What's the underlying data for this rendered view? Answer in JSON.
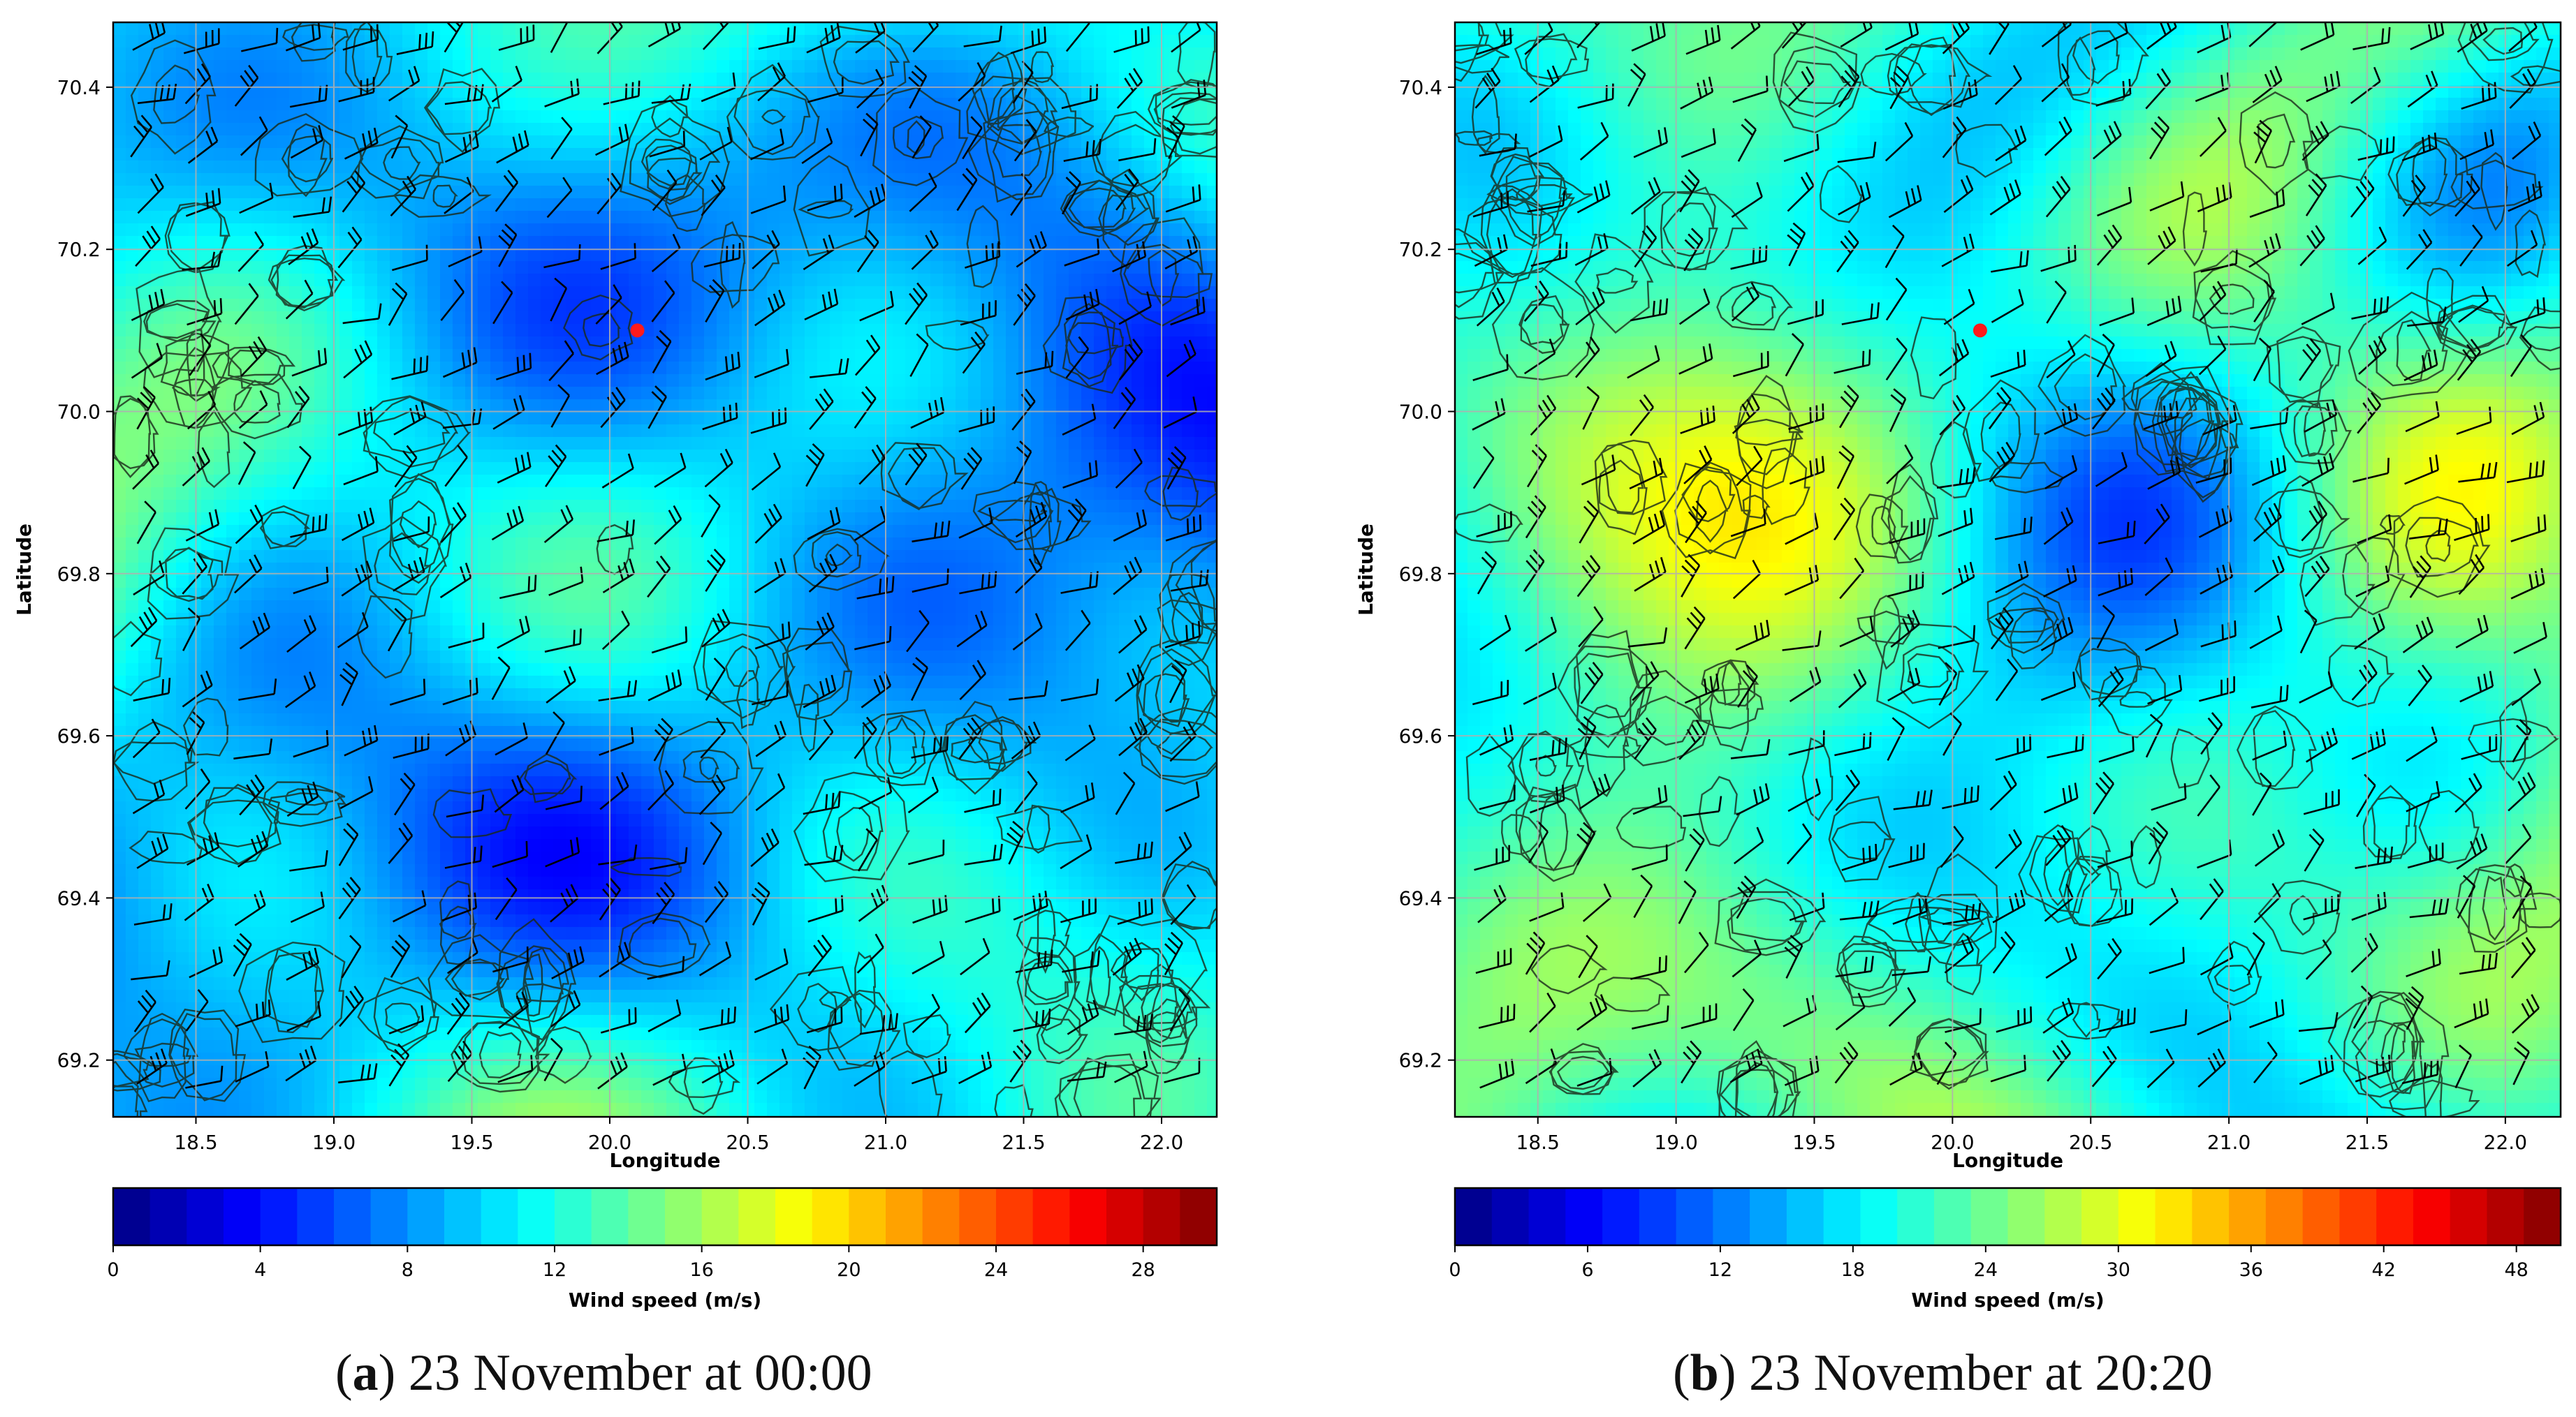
{
  "chart_data": [
    {
      "type": "heatmap",
      "panel_label": "a",
      "caption": "23 November at 00:00",
      "xlabel": "Longitude",
      "ylabel": "Latitude",
      "xlim": [
        18.2,
        22.2
      ],
      "ylim": [
        69.13,
        70.48
      ],
      "xticks": [
        18.5,
        19.0,
        19.5,
        20.0,
        20.5,
        21.0,
        21.5,
        22.0
      ],
      "xtick_labels": [
        "18.5",
        "19.0",
        "19.5",
        "20.0",
        "20.5",
        "21.0",
        "21.5",
        "22.0"
      ],
      "yticks": [
        69.2,
        69.4,
        69.6,
        69.8,
        70.0,
        70.2,
        70.4
      ],
      "ytick_labels": [
        "69.2",
        "69.4",
        "69.6",
        "69.8",
        "70.0",
        "70.2",
        "70.4"
      ],
      "grid": true,
      "colorbar": {
        "label": "Wind speed (m/s)",
        "min": 0,
        "max": 30,
        "ticks": [
          0,
          4,
          8,
          12,
          16,
          20,
          24,
          28
        ],
        "tick_labels": [
          "0",
          "4",
          "8",
          "12",
          "16",
          "20",
          "24",
          "28"
        ]
      },
      "overlays": [
        "wind barbs",
        "terrain elevation contours"
      ],
      "marker": {
        "lon": 20.1,
        "lat": 70.1,
        "color": "#ff1a1a"
      },
      "seed": 11,
      "field_mean": 0.33
    },
    {
      "type": "heatmap",
      "panel_label": "b",
      "caption": "23 November at 20:20",
      "xlabel": "Longitude",
      "ylabel": "Latitude",
      "xlim": [
        18.2,
        22.2
      ],
      "ylim": [
        69.13,
        70.48
      ],
      "xticks": [
        18.5,
        19.0,
        19.5,
        20.0,
        20.5,
        21.0,
        21.5,
        22.0
      ],
      "xtick_labels": [
        "18.5",
        "19.0",
        "19.5",
        "20.0",
        "20.5",
        "21.0",
        "21.5",
        "22.0"
      ],
      "yticks": [
        69.2,
        69.4,
        69.6,
        69.8,
        70.0,
        70.2,
        70.4
      ],
      "ytick_labels": [
        "69.2",
        "69.4",
        "69.6",
        "69.8",
        "70.0",
        "70.2",
        "70.4"
      ],
      "grid": true,
      "colorbar": {
        "label": "Wind speed (m/s)",
        "min": 0,
        "max": 50,
        "ticks": [
          0,
          6,
          12,
          18,
          24,
          30,
          36,
          42,
          48
        ],
        "tick_labels": [
          "0",
          "6",
          "12",
          "18",
          "24",
          "30",
          "36",
          "42",
          "48"
        ]
      },
      "overlays": [
        "wind barbs",
        "terrain elevation contours"
      ],
      "marker": {
        "lon": 20.1,
        "lat": 70.1,
        "color": "#ff1a1a"
      },
      "seed": 29,
      "field_mean": 0.42
    }
  ]
}
